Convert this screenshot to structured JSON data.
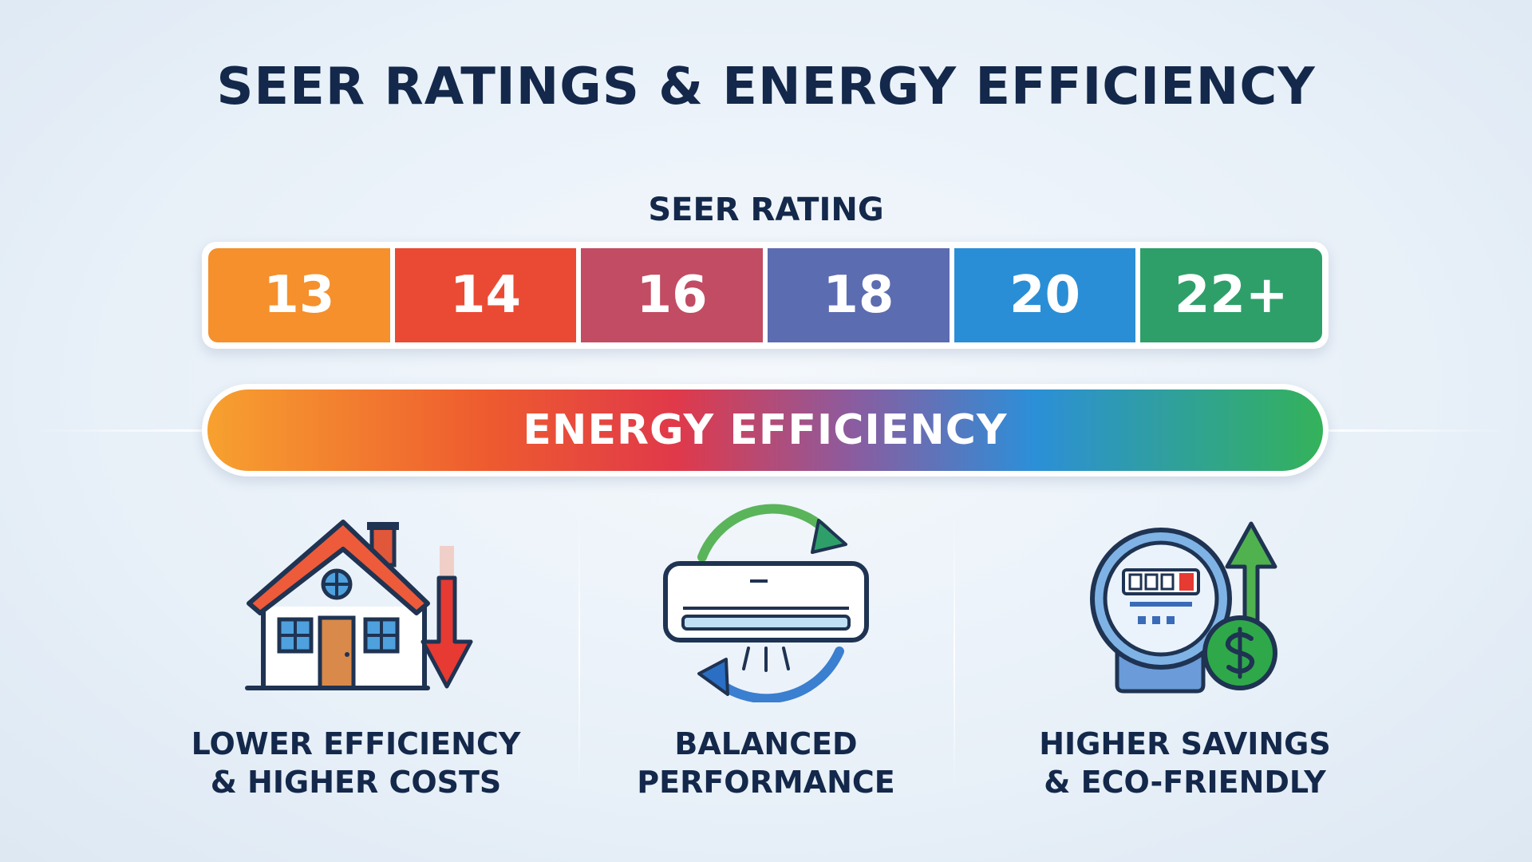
{
  "title": "SEER RATINGS & ENERGY EFFICIENCY",
  "scale": {
    "title": "SEER RATING",
    "ratings": [
      {
        "value": "13",
        "color": "#f5902c"
      },
      {
        "value": "14",
        "color": "#ea4a34"
      },
      {
        "value": "16",
        "color": "#c14c63"
      },
      {
        "value": "18",
        "color": "#5c6cb0"
      },
      {
        "value": "20",
        "color": "#2a8ed6"
      },
      {
        "value": "22+",
        "color": "#2f9f6a"
      }
    ]
  },
  "efficiency_bar": {
    "label": "ENERGY EFFICIENCY"
  },
  "features": [
    {
      "icon": "house-down-arrow-icon",
      "line1": "LOWER EFFICIENCY",
      "line2": "& HIGHER COSTS"
    },
    {
      "icon": "air-conditioner-cycle-icon",
      "line1": "BALANCED",
      "line2": "PERFORMANCE"
    },
    {
      "icon": "meter-savings-icon",
      "line1": "HIGHER SAVINGS",
      "line2": "& ECO-FRIENDLY"
    }
  ],
  "colors": {
    "title": "#13284a",
    "gradient_start": "#f7a12f",
    "gradient_end": "#34b25a"
  }
}
